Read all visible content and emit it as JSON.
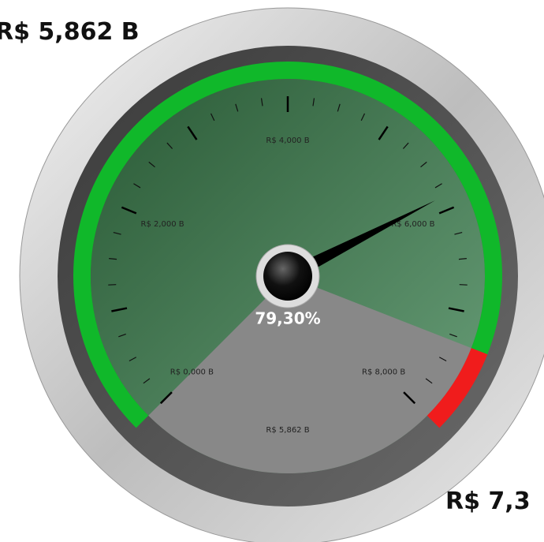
{
  "chart_data": {
    "type": "gauge",
    "min": 0,
    "max": 8,
    "value": 5.862,
    "value_label": "R$ 5,862 B",
    "percent": 79.3,
    "percent_label": "79,30%",
    "target_label": "R$ 7,3",
    "bands": [
      {
        "from": 0,
        "to": 7.3,
        "color": "#10b82a"
      },
      {
        "from": 7.3,
        "to": 8,
        "color": "#f01c1c"
      }
    ],
    "ticks": [
      {
        "value": 0,
        "label": "R$ 0,000 B"
      },
      {
        "value": 2,
        "label": "R$ 2,000 B"
      },
      {
        "value": 4,
        "label": "R$ 4,000 B"
      },
      {
        "value": 6,
        "label": "R$ 6,000 B"
      },
      {
        "value": 8,
        "label": "R$ 8,000 B"
      }
    ],
    "major_ticks": [
      0,
      1,
      2,
      3,
      4,
      5,
      6,
      7,
      8
    ],
    "minor_ticks": [
      0.25,
      0.5,
      0.75,
      1.25,
      1.5,
      1.75,
      2.25,
      2.5,
      2.75,
      3.25,
      3.5,
      3.75,
      4.25,
      4.5,
      4.75,
      5.25,
      5.5,
      5.75,
      6.25,
      6.5,
      6.75,
      7.25,
      7.5,
      7.75
    ]
  }
}
